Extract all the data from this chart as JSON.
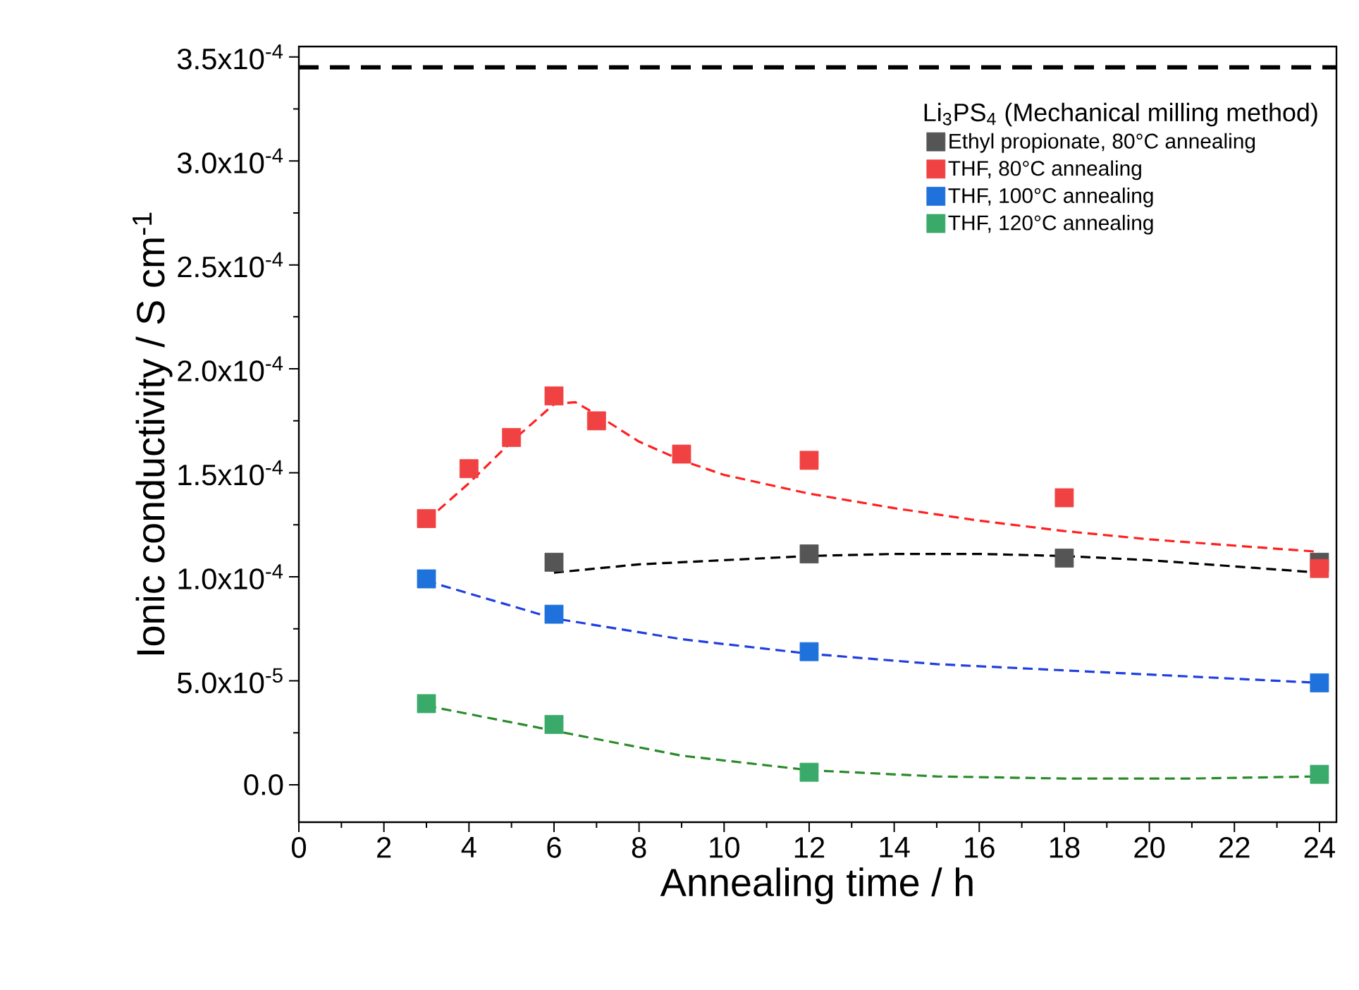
{
  "chart_data": {
    "type": "scatter",
    "xlabel": "Annealing  time / h",
    "ylabel": "Ionic conductivity / S cm$^{-1}$",
    "legend_title": "Li$_{3}$PS$_{4}$ (Mechanical milling method)",
    "legend": "top right",
    "marker": "square",
    "grid": false,
    "xlim": [
      0,
      24.4
    ],
    "ylim": [
      -1.8e-05,
      0.000355
    ],
    "xticks": [
      0,
      2,
      4,
      6,
      8,
      10,
      12,
      14,
      16,
      18,
      20,
      22,
      24
    ],
    "yticks": [
      {
        "value": 0,
        "label": "0.0"
      },
      {
        "value": 5e-05,
        "label": "5.0x10$^{-5}$"
      },
      {
        "value": 0.0001,
        "label": "1.0x10$^{-4}$"
      },
      {
        "value": 0.00015,
        "label": "1.5x10$^{-4}$"
      },
      {
        "value": 0.0002,
        "label": "2.0x10$^{-4}$"
      },
      {
        "value": 0.00025,
        "label": "2.5x10$^{-4}$"
      },
      {
        "value": 0.0003,
        "label": "3.0x10$^{-4}$"
      },
      {
        "value": 0.00035,
        "label": "3.5x10$^{-4}$"
      }
    ],
    "ref_lines": [
      {
        "axis": "y",
        "value": 0.000345,
        "color": "#000000",
        "line_style": "dashed"
      }
    ],
    "series": [
      {
        "name": "Ethyl propionate, 80°C annealing",
        "color": "#555555",
        "x": [
          6,
          12,
          18,
          24
        ],
        "values": [
          0.000107,
          0.000111,
          0.000109,
          0.000107
        ]
      },
      {
        "name": "THF, 80°C annealing",
        "color": "#f04242",
        "x": [
          3,
          4,
          5,
          6,
          7,
          9,
          12,
          18,
          24
        ],
        "values": [
          0.000128,
          0.000152,
          0.000167,
          0.000187,
          0.000175,
          0.000159,
          0.000156,
          0.000138,
          0.000104
        ]
      },
      {
        "name": "THF, 100°C annealing",
        "color": "#1f72dc",
        "x": [
          3,
          6,
          12,
          24
        ],
        "values": [
          9.9e-05,
          8.2e-05,
          6.4e-05,
          4.9e-05
        ]
      },
      {
        "name": "THF, 120°C annealing",
        "color": "#3aaa6a",
        "x": [
          3,
          6,
          12,
          24
        ],
        "values": [
          3.9e-05,
          2.9e-05,
          6e-06,
          5e-06
        ]
      },
      {
        "type": "line",
        "line_style": "dashed",
        "marker": "none",
        "color": "#000000",
        "x": [
          6,
          8,
          10,
          12,
          14,
          16,
          18,
          20,
          22,
          24
        ],
        "values": [
          0.000102,
          0.000106,
          0.000108,
          0.00011,
          0.000111,
          0.000111,
          0.00011,
          0.000108,
          0.000105,
          0.000102
        ]
      },
      {
        "type": "line",
        "line_style": "dashed",
        "marker": "none",
        "color": "#ff2020",
        "x": [
          3,
          4,
          5,
          6,
          6.5,
          7,
          8,
          9,
          10,
          12,
          14,
          16,
          18,
          20,
          22,
          24
        ],
        "values": [
          0.000127,
          0.000145,
          0.000165,
          0.000183,
          0.000184,
          0.000178,
          0.000165,
          0.000156,
          0.000149,
          0.00014,
          0.000133,
          0.000127,
          0.000122,
          0.000118,
          0.000115,
          0.000112
        ]
      },
      {
        "type": "line",
        "line_style": "dashed",
        "marker": "none",
        "color": "#1f3fe0",
        "x": [
          3,
          6,
          9,
          12,
          15,
          18,
          21,
          24
        ],
        "values": [
          9.8e-05,
          8e-05,
          7e-05,
          6.3e-05,
          5.8e-05,
          5.5e-05,
          5.2e-05,
          4.9e-05
        ]
      },
      {
        "type": "line",
        "line_style": "dashed",
        "marker": "none",
        "color": "#2a8a2a",
        "x": [
          3,
          6,
          9,
          12,
          15,
          18,
          21,
          24
        ],
        "values": [
          3.8e-05,
          2.6e-05,
          1.4e-05,
          7e-06,
          4e-06,
          3e-06,
          3e-06,
          4e-06
        ]
      }
    ]
  }
}
